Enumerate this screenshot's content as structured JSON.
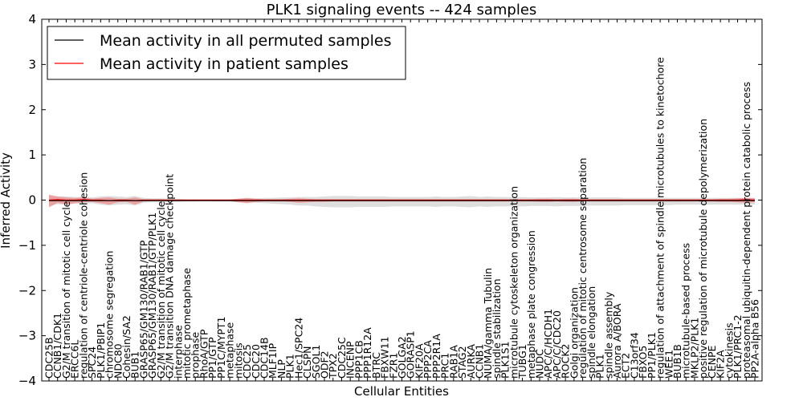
{
  "chart_data": {
    "type": "line",
    "title": "PLK1 signaling events -- 424 samples",
    "xlabel": "Cellular Entities",
    "ylabel": "Inferred Activity",
    "ylim": [
      -4,
      4
    ],
    "yticks": [
      -4,
      -3,
      -2,
      -1,
      0,
      1,
      2,
      3,
      4
    ],
    "legend": {
      "placement": "top-left",
      "entries": [
        {
          "label": "Mean activity in all permuted samples",
          "color": "#000000"
        },
        {
          "label": "Mean activity in patient samples",
          "color": "#ff0000"
        }
      ]
    },
    "categories": [
      "CDC25B",
      "CCNB1/CDK1",
      "G2/M transition of mitotic cell cycle",
      "ERCC6L",
      "regulation of centriole-centriole cohesion",
      "SPC24",
      "PLK1/PBIP1",
      "chromosome segregation",
      "NDC80",
      "Cohesin/SA2",
      "BUB1",
      "GRASP65/GM130/RAB1/GTP",
      "GRASP65/GM130/RAB1/GTP/PLK1",
      "G2/M transition of mitotic cell cycle",
      "G2/M transition DNA damage checkpoint",
      "interphase",
      "mitotic prometaphase",
      "prophase",
      "RhoA/GTP",
      "PP1/GTP",
      "PP1C/MYPT1",
      "metaphase",
      "mitosis",
      "CDC25",
      "CDC20",
      "CDC14B",
      "MLF1IP",
      "NLP",
      "PLK1",
      "Hec1/SPC24",
      "CLSPN",
      "SGOL1",
      "ODF2",
      "TPX2",
      "CDC25C",
      "INCENP",
      "PPP1CB",
      "PPP1R12A",
      "BTRC",
      "FBXW11",
      "FZR1",
      "GOLGA2",
      "GORASP1",
      "KIF20A",
      "PPP2CA",
      "PPP2R1A",
      "PRC1",
      "RAB1A",
      "STAG2",
      "AURKA",
      "CCNB1",
      "NUMA/gamma Tubulin",
      "spindle stabilization",
      "PLK1S1",
      "microtubule cytoskeleton organization",
      "TUBG1",
      "metaphase plate congression",
      "NUDC",
      "APC/C/HCDH1",
      "APC/C/CDC20",
      "ROCK2",
      "Golgi organization",
      "regulation of mitotic centrosome separation",
      "spindle elongation",
      "PLK1",
      "spindle assembly",
      "Aurora A/BORA",
      "ECT2",
      "C13orf34",
      "FBXO5",
      "PP1/PLK1",
      "regulation of attachment of spindle microtubules to kinetochore",
      "WEE1",
      "BUB1B",
      "microtubule-based process",
      "MKLP2/PLK1",
      "positive regulation of microtubule depolymerization",
      "CENPE",
      "KIF2A",
      "cytokinesis",
      "PLK1/PRC1-2",
      "proteasomal ubiquitin-dependent protein catabolic process",
      "PP2A-alpha B56"
    ],
    "series": [
      {
        "name": "Mean activity in all permuted samples",
        "color": "#000000",
        "values": [
          -0.01,
          -0.01,
          -0.01,
          -0.01,
          -0.01,
          -0.01,
          -0.01,
          -0.01,
          -0.01,
          -0.01,
          -0.01,
          -0.01,
          -0.01,
          -0.01,
          -0.01,
          -0.01,
          -0.01,
          -0.01,
          -0.01,
          -0.01,
          -0.01,
          -0.01,
          -0.01,
          -0.01,
          -0.01,
          -0.01,
          -0.01,
          -0.01,
          -0.01,
          -0.01,
          -0.01,
          -0.01,
          -0.01,
          -0.01,
          -0.01,
          -0.01,
          -0.01,
          -0.01,
          -0.01,
          -0.01,
          -0.01,
          -0.01,
          -0.01,
          -0.01,
          -0.01,
          -0.01,
          -0.01,
          -0.01,
          -0.01,
          -0.01,
          -0.01,
          -0.01,
          -0.01,
          -0.01,
          -0.01,
          -0.01,
          -0.01,
          -0.01,
          -0.01,
          -0.01,
          -0.01,
          -0.01,
          -0.01,
          -0.01,
          -0.01,
          -0.01,
          -0.01,
          -0.01,
          -0.01,
          -0.01,
          -0.01,
          -0.01,
          -0.01,
          -0.01,
          -0.01,
          -0.01,
          -0.01,
          -0.01,
          -0.01,
          -0.01,
          -0.01,
          -0.01,
          -0.01
        ],
        "band_low": [
          -0.13,
          -0.09,
          -0.1,
          -0.08,
          -0.08,
          -0.07,
          -0.1,
          -0.12,
          -0.1,
          -0.09,
          -0.12,
          -0.06,
          -0.05,
          -0.05,
          -0.04,
          -0.04,
          -0.03,
          -0.03,
          -0.02,
          -0.03,
          -0.03,
          -0.03,
          -0.05,
          -0.06,
          -0.06,
          -0.07,
          -0.08,
          -0.09,
          -0.1,
          -0.12,
          -0.12,
          -0.14,
          -0.15,
          -0.16,
          -0.16,
          -0.16,
          -0.15,
          -0.15,
          -0.15,
          -0.15,
          -0.14,
          -0.14,
          -0.14,
          -0.14,
          -0.14,
          -0.15,
          -0.14,
          -0.14,
          -0.15,
          -0.16,
          -0.14,
          -0.15,
          -0.14,
          -0.14,
          -0.13,
          -0.14,
          -0.13,
          -0.13,
          -0.13,
          -0.14,
          -0.13,
          -0.13,
          -0.13,
          -0.12,
          -0.12,
          -0.12,
          -0.12,
          -0.11,
          -0.11,
          -0.11,
          -0.11,
          -0.11,
          -0.11,
          -0.1,
          -0.1,
          -0.1,
          -0.1,
          -0.1,
          -0.1,
          -0.1,
          -0.1,
          -0.1,
          -0.1
        ],
        "band_high": [
          0.1,
          0.08,
          0.08,
          0.07,
          0.07,
          0.06,
          0.08,
          0.09,
          0.08,
          0.07,
          0.09,
          0.05,
          0.04,
          0.04,
          0.03,
          0.03,
          0.02,
          0.02,
          0.02,
          0.02,
          0.02,
          0.02,
          0.03,
          0.04,
          0.04,
          0.05,
          0.05,
          0.06,
          0.06,
          0.07,
          0.07,
          0.07,
          0.08,
          0.09,
          0.09,
          0.09,
          0.08,
          0.08,
          0.08,
          0.08,
          0.07,
          0.07,
          0.07,
          0.07,
          0.07,
          0.08,
          0.07,
          0.07,
          0.08,
          0.09,
          0.07,
          0.08,
          0.07,
          0.07,
          0.06,
          0.07,
          0.06,
          0.06,
          0.06,
          0.07,
          0.06,
          0.06,
          0.06,
          0.06,
          0.06,
          0.06,
          0.06,
          0.05,
          0.05,
          0.05,
          0.05,
          0.05,
          0.05,
          0.05,
          0.05,
          0.05,
          0.05,
          0.05,
          0.05,
          0.05,
          0.05,
          0.05,
          0.05
        ]
      },
      {
        "name": "Mean activity in patient samples",
        "color": "#ff0000",
        "values": [
          0.0,
          0.01,
          0.0,
          0.0,
          0.01,
          0.0,
          0.0,
          -0.01,
          0.0,
          0.0,
          -0.01,
          0.0,
          0.0,
          0.0,
          0.0,
          0.0,
          0.0,
          0.0,
          0.0,
          0.0,
          0.0,
          0.0,
          0.0,
          0.0,
          0.0,
          0.0,
          0.0,
          0.0,
          0.0,
          0.0,
          0.0,
          0.0,
          0.0,
          0.0,
          0.0,
          0.0,
          0.0,
          0.0,
          0.0,
          0.0,
          0.0,
          0.0,
          0.0,
          0.0,
          0.0,
          0.0,
          0.0,
          0.0,
          0.0,
          0.0,
          0.0,
          0.0,
          0.0,
          0.0,
          0.0,
          0.0,
          0.0,
          0.0,
          0.0,
          0.0,
          0.0,
          0.0,
          0.0,
          0.0,
          0.0,
          0.0,
          0.0,
          0.0,
          0.0,
          0.0,
          0.0,
          0.0,
          0.0,
          0.0,
          0.0,
          0.0,
          0.0,
          0.0,
          0.0,
          0.0,
          0.0,
          0.01,
          0.0
        ],
        "band_low": [
          -0.16,
          -0.06,
          -0.1,
          -0.07,
          -0.05,
          -0.04,
          -0.07,
          -0.1,
          -0.05,
          -0.04,
          -0.1,
          -0.03,
          -0.02,
          -0.02,
          -0.02,
          -0.02,
          -0.02,
          -0.02,
          -0.02,
          -0.02,
          -0.02,
          -0.02,
          -0.05,
          -0.07,
          -0.04,
          -0.03,
          -0.03,
          -0.03,
          -0.04,
          -0.06,
          -0.05,
          -0.04,
          -0.04,
          -0.03,
          -0.03,
          -0.03,
          -0.03,
          -0.03,
          -0.03,
          -0.03,
          -0.03,
          -0.03,
          -0.03,
          -0.03,
          -0.03,
          -0.03,
          -0.03,
          -0.03,
          -0.03,
          -0.03,
          -0.03,
          -0.03,
          -0.03,
          -0.03,
          -0.03,
          -0.03,
          -0.03,
          -0.04,
          -0.04,
          -0.03,
          -0.04,
          -0.04,
          -0.03,
          -0.03,
          -0.03,
          -0.03,
          -0.03,
          -0.03,
          -0.03,
          -0.03,
          -0.03,
          -0.03,
          -0.03,
          -0.03,
          -0.03,
          -0.03,
          -0.03,
          -0.03,
          -0.04,
          -0.04,
          -0.05,
          -0.06,
          -0.05
        ],
        "band_high": [
          0.12,
          0.08,
          0.06,
          0.05,
          0.06,
          0.03,
          0.05,
          0.06,
          0.03,
          0.03,
          0.06,
          0.02,
          0.02,
          0.02,
          0.01,
          0.01,
          0.01,
          0.01,
          0.01,
          0.01,
          0.01,
          0.01,
          0.03,
          0.05,
          0.03,
          0.02,
          0.02,
          0.02,
          0.03,
          0.04,
          0.03,
          0.02,
          0.02,
          0.02,
          0.02,
          0.02,
          0.02,
          0.02,
          0.02,
          0.02,
          0.02,
          0.02,
          0.02,
          0.02,
          0.02,
          0.02,
          0.02,
          0.02,
          0.02,
          0.02,
          0.02,
          0.02,
          0.02,
          0.02,
          0.02,
          0.02,
          0.02,
          0.03,
          0.03,
          0.02,
          0.03,
          0.03,
          0.02,
          0.02,
          0.02,
          0.02,
          0.02,
          0.02,
          0.02,
          0.02,
          0.02,
          0.02,
          0.02,
          0.02,
          0.02,
          0.02,
          0.02,
          0.02,
          0.03,
          0.03,
          0.04,
          0.05,
          0.04
        ]
      }
    ]
  }
}
